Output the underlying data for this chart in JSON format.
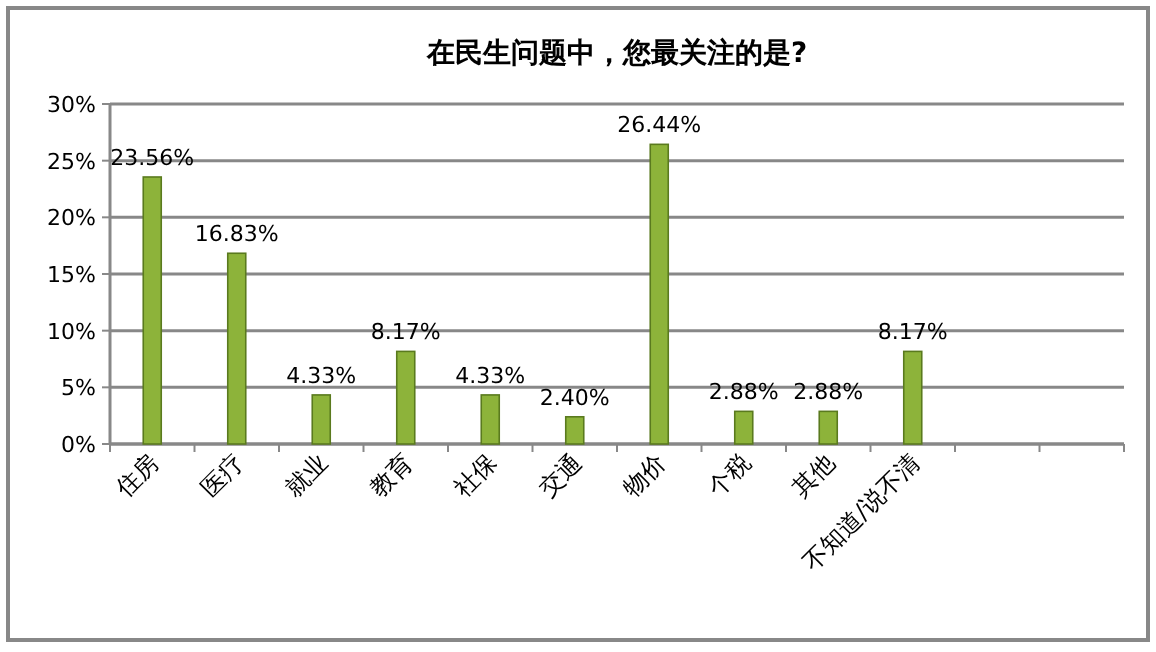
{
  "chart_data": {
    "type": "bar",
    "title": "在民生问题中，您最关注的是?",
    "categories": [
      "住房",
      "医疗",
      "就业",
      "教育",
      "社保",
      "交通",
      "物价",
      "个税",
      "其他",
      "不知道/说不清",
      null,
      null
    ],
    "values": [
      23.56,
      16.83,
      4.33,
      8.17,
      4.33,
      2.4,
      26.44,
      2.88,
      2.88,
      8.17,
      null,
      null
    ],
    "value_labels": [
      "23.56%",
      "16.83%",
      "4.33%",
      "8.17%",
      "4.33%",
      "2.40%",
      "26.44%",
      "2.88%",
      "2.88%",
      "8.17%",
      null,
      null
    ],
    "color": "#8db33a",
    "ylim": [
      0,
      30
    ],
    "yticks": [
      {
        "value": 0,
        "label": "0%"
      },
      {
        "value": 5,
        "label": "5%"
      },
      {
        "value": 10,
        "label": "10%"
      },
      {
        "value": 15,
        "label": "15%"
      },
      {
        "value": 20,
        "label": "20%"
      },
      {
        "value": 25,
        "label": "25%"
      },
      {
        "value": 30,
        "label": "30%"
      }
    ],
    "grid": "y"
  }
}
